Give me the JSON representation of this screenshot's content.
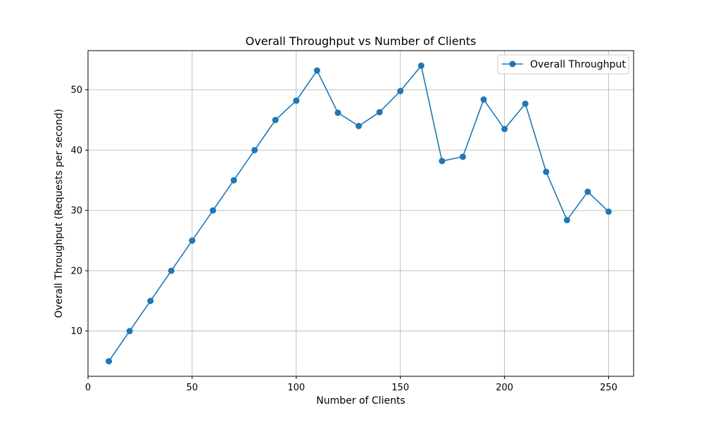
{
  "chart_data": {
    "type": "line",
    "title": "Overall Throughput vs Number of Clients",
    "xlabel": "Number of Clients",
    "ylabel": "Overall Throughput (Requests per second)",
    "xlim": [
      0,
      262
    ],
    "ylim": [
      2.5,
      56.5
    ],
    "xticks": [
      0,
      50,
      100,
      150,
      200,
      250
    ],
    "yticks": [
      10,
      20,
      30,
      40,
      50
    ],
    "grid": true,
    "legend_position": "top-right",
    "series": [
      {
        "name": "Overall Throughput",
        "color": "#1f77b4",
        "marker": "circle",
        "x": [
          10,
          20,
          30,
          40,
          50,
          60,
          70,
          80,
          90,
          100,
          110,
          120,
          130,
          140,
          150,
          160,
          170,
          180,
          190,
          200,
          210,
          220,
          230,
          240,
          250
        ],
        "y": [
          5.0,
          10.0,
          15.0,
          20.0,
          25.0,
          30.0,
          35.0,
          40.0,
          45.0,
          48.2,
          53.2,
          46.2,
          44.0,
          46.3,
          49.8,
          54.0,
          38.2,
          38.9,
          48.4,
          43.5,
          47.7,
          36.4,
          28.4,
          33.1,
          29.8
        ]
      }
    ]
  }
}
